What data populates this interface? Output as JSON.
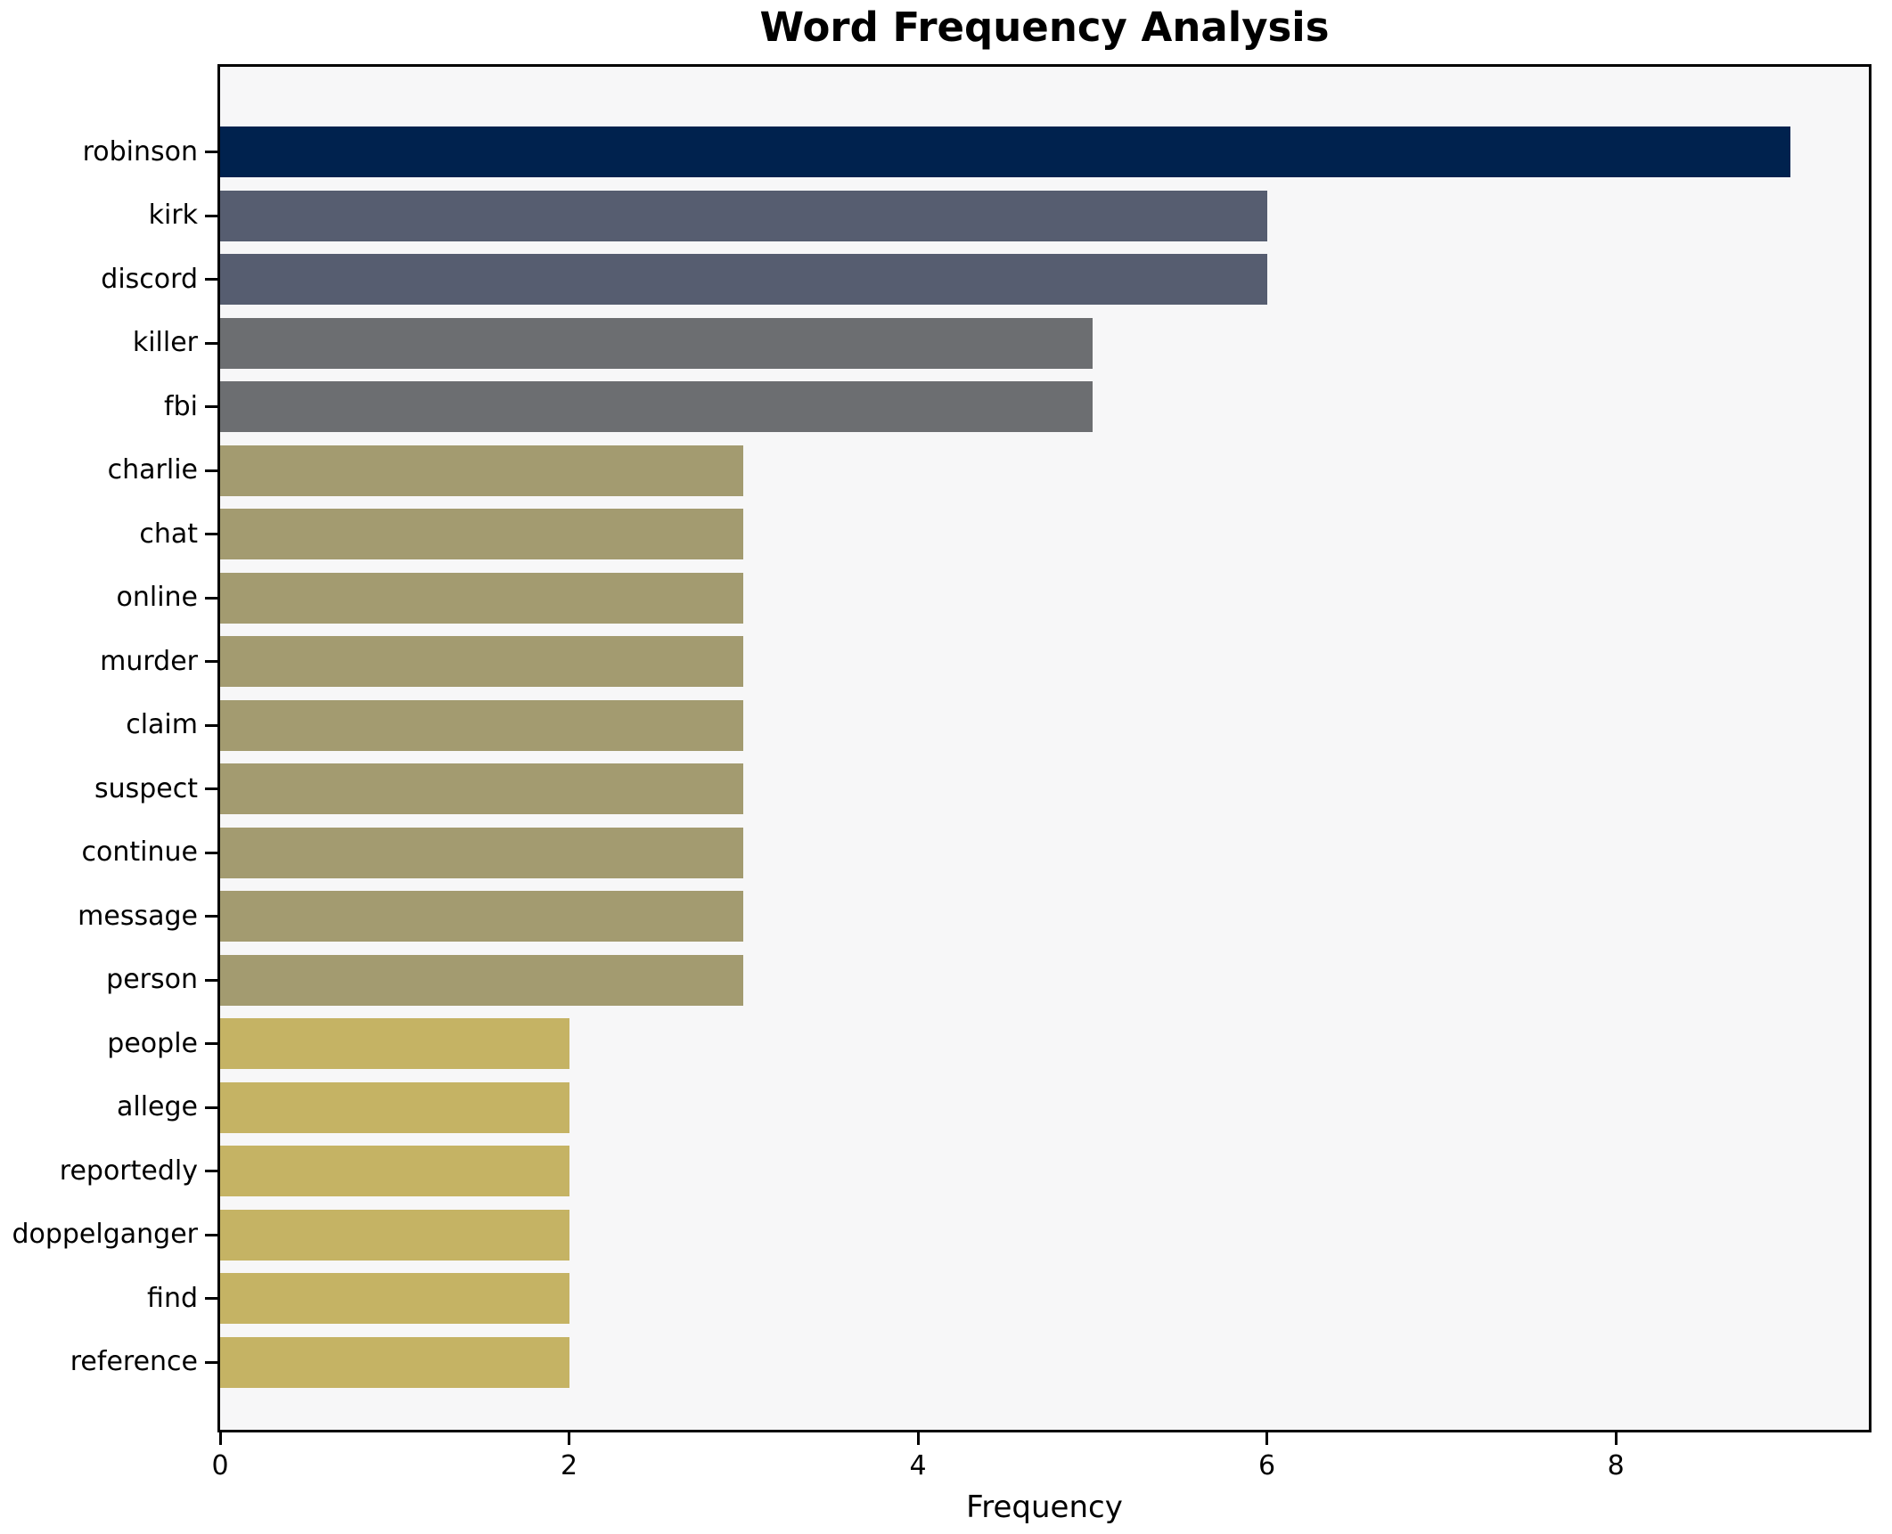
{
  "chart_data": {
    "type": "bar",
    "orientation": "horizontal",
    "title": "Word Frequency Analysis",
    "xlabel": "Frequency",
    "ylabel": "",
    "categories": [
      "robinson",
      "kirk",
      "discord",
      "killer",
      "fbi",
      "charlie",
      "chat",
      "online",
      "murder",
      "claim",
      "suspect",
      "continue",
      "message",
      "person",
      "people",
      "allege",
      "reportedly",
      "doppelganger",
      "find",
      "reference"
    ],
    "values": [
      9,
      6,
      6,
      5,
      5,
      3,
      3,
      3,
      3,
      3,
      3,
      3,
      3,
      3,
      2,
      2,
      2,
      2,
      2,
      2
    ],
    "bar_colors": [
      "#00224e",
      "#565d70",
      "#565d70",
      "#6c6e71",
      "#6c6e71",
      "#a39b70",
      "#a39b70",
      "#a39b70",
      "#a39b70",
      "#a39b70",
      "#a39b70",
      "#a39b70",
      "#a39b70",
      "#a39b70",
      "#c5b364",
      "#c5b364",
      "#c5b364",
      "#c5b364",
      "#c5b364",
      "#c5b364"
    ],
    "xlim": [
      0,
      9.45
    ],
    "xticks": [
      0,
      2,
      4,
      6,
      8
    ],
    "grid": false,
    "legend": null,
    "colors": {
      "figure_background": "#ffffff",
      "axes_background": "#f7f7f8",
      "spine": "#000000",
      "text": "#000000"
    }
  }
}
